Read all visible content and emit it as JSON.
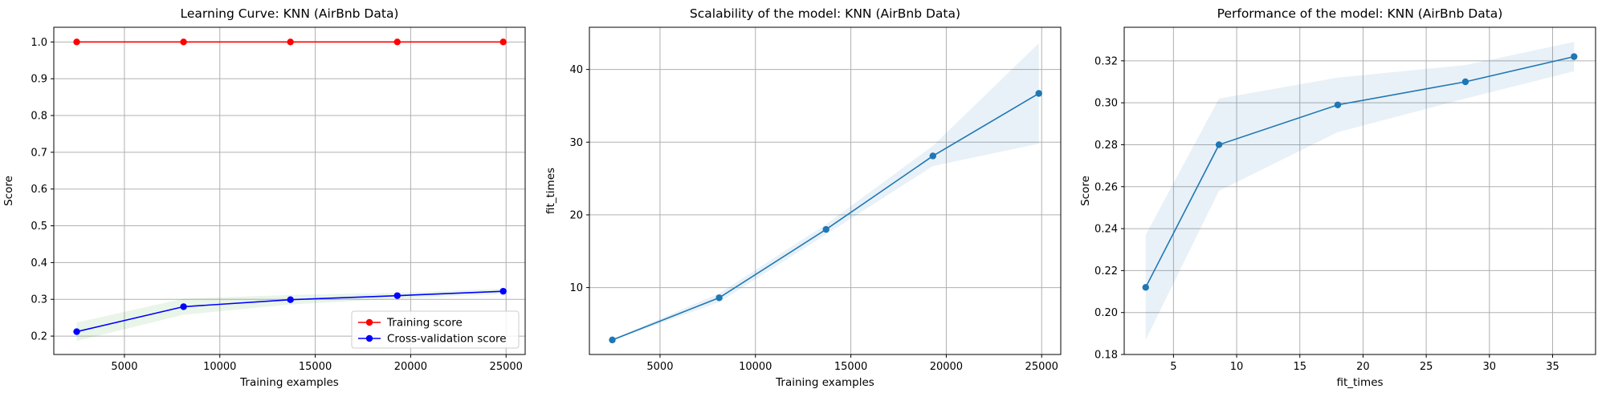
{
  "chart_data": [
    {
      "type": "line",
      "title": "Learning Curve: KNN (AirBnb Data)",
      "xlabel": "Training examples",
      "ylabel": "Score",
      "xlim": [
        1300,
        26000
      ],
      "ylim": [
        0.15,
        1.04
      ],
      "xticks": [
        5000,
        10000,
        15000,
        20000,
        25000
      ],
      "yticks": [
        0.2,
        0.3,
        0.4,
        0.5,
        0.6,
        0.7,
        0.8,
        0.9,
        1.0
      ],
      "ytick_decimals": 1,
      "grid": true,
      "legend_position": "bottom-right",
      "x": [
        2500,
        8100,
        13700,
        19300,
        24850
      ],
      "series": [
        {
          "name": "Training score",
          "color": "#ff0000",
          "band_color": "#ff0000",
          "values": [
            1.0,
            1.0,
            1.0,
            1.0,
            1.0
          ],
          "band_low": [
            1.0,
            1.0,
            1.0,
            1.0,
            1.0
          ],
          "band_high": [
            1.0,
            1.0,
            1.0,
            1.0,
            1.0
          ]
        },
        {
          "name": "Cross-validation score",
          "color": "#0000ff",
          "band_color": "#2ca02c",
          "values": [
            0.212,
            0.28,
            0.299,
            0.31,
            0.322
          ],
          "band_low": [
            0.187,
            0.258,
            0.286,
            0.302,
            0.315
          ],
          "band_high": [
            0.237,
            0.302,
            0.312,
            0.318,
            0.329
          ]
        }
      ]
    },
    {
      "type": "line",
      "title": "Scalability of the model: KNN (AirBnb Data)",
      "xlabel": "Training examples",
      "ylabel": "fit_times",
      "xlim": [
        1300,
        26000
      ],
      "ylim": [
        0.8,
        45.8
      ],
      "xticks": [
        5000,
        10000,
        15000,
        20000,
        25000
      ],
      "yticks": [
        10,
        20,
        30,
        40
      ],
      "ytick_decimals": 0,
      "grid": true,
      "x": [
        2500,
        8100,
        13700,
        19300,
        24850
      ],
      "series": [
        {
          "color": "#1f77b4",
          "band_color": "#1f77b4",
          "values": [
            2.8,
            8.6,
            18.0,
            28.1,
            36.7
          ],
          "band_low": [
            2.7,
            8.0,
            17.3,
            26.7,
            29.8
          ],
          "band_high": [
            2.9,
            9.2,
            18.7,
            29.5,
            43.6
          ]
        }
      ]
    },
    {
      "type": "line",
      "title": "Performance of the model: KNN (AirBnb Data)",
      "xlabel": "fit_times",
      "ylabel": "Score",
      "xlim": [
        1.1,
        38.4
      ],
      "ylim": [
        0.18,
        0.336
      ],
      "xticks": [
        5,
        10,
        15,
        20,
        25,
        30,
        35
      ],
      "yticks": [
        0.18,
        0.2,
        0.22,
        0.24,
        0.26,
        0.28,
        0.3,
        0.32
      ],
      "ytick_decimals": 2,
      "grid": true,
      "x": [
        2.8,
        8.6,
        18.0,
        28.1,
        36.7
      ],
      "series": [
        {
          "color": "#1f77b4",
          "band_color": "#1f77b4",
          "values": [
            0.212,
            0.28,
            0.299,
            0.31,
            0.322
          ],
          "band_low": [
            0.187,
            0.258,
            0.286,
            0.302,
            0.315
          ],
          "band_high": [
            0.237,
            0.302,
            0.312,
            0.318,
            0.329
          ]
        }
      ]
    }
  ]
}
